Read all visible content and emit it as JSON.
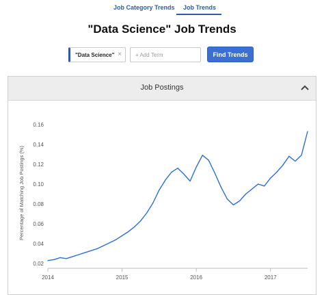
{
  "nav": {
    "tabs": [
      {
        "label": "Job Category Trends",
        "active": false
      },
      {
        "label": "Job Trends",
        "active": true
      }
    ]
  },
  "page_title": "\"Data Science\" Job Trends",
  "search": {
    "term": "\"Data Science\"",
    "remove_icon": "close-icon",
    "add_placeholder": "+ Add Term",
    "add_value": "",
    "button_label": "Find Trends",
    "accent_color": "#3b6fd3"
  },
  "panel": {
    "title": "Job Postings",
    "collapse_icon": "chevron-up-icon"
  },
  "chart_data": {
    "type": "line",
    "title": "",
    "xlabel": "",
    "ylabel": "Percentage of Matching Job Postings (%)",
    "ylim": [
      0.018,
      0.164
    ],
    "xlim": [
      "2014-01",
      "2017-07"
    ],
    "x_ticks": [
      "2014",
      "2015",
      "2016",
      "2017"
    ],
    "y_ticks": [
      "0.02",
      "0.04",
      "0.06",
      "0.08",
      "0.10",
      "0.12",
      "0.14",
      "0.16"
    ],
    "y_tick_values": [
      0.02,
      0.04,
      0.06,
      0.08,
      0.1,
      0.12,
      0.14,
      0.16
    ],
    "grid": false,
    "legend": "none",
    "line_color": "#2a6fd6",
    "series": [
      {
        "x": [
          "2014-01",
          "2014-02",
          "2014-03",
          "2014-04",
          "2014-05",
          "2014-06",
          "2014-07",
          "2014-08",
          "2014-09",
          "2014-10",
          "2014-11",
          "2014-12",
          "2015-01",
          "2015-02",
          "2015-03",
          "2015-04",
          "2015-05",
          "2015-06",
          "2015-07",
          "2015-08",
          "2015-09",
          "2015-10",
          "2015-11",
          "2015-12",
          "2016-01",
          "2016-02",
          "2016-03",
          "2016-04",
          "2016-05",
          "2016-06",
          "2016-07",
          "2016-08",
          "2016-09",
          "2016-10",
          "2016-11",
          "2016-12",
          "2017-01",
          "2017-02",
          "2017-03",
          "2017-04",
          "2017-05",
          "2017-06",
          "2017-07"
        ],
        "values": [
          0.023,
          0.024,
          0.026,
          0.025,
          0.027,
          0.029,
          0.031,
          0.033,
          0.035,
          0.038,
          0.041,
          0.044,
          0.048,
          0.052,
          0.057,
          0.063,
          0.071,
          0.081,
          0.094,
          0.104,
          0.112,
          0.116,
          0.11,
          0.103,
          0.117,
          0.129,
          0.124,
          0.111,
          0.097,
          0.085,
          0.079,
          0.083,
          0.09,
          0.095,
          0.1,
          0.098,
          0.106,
          0.112,
          0.119,
          0.128,
          0.123,
          0.129,
          0.153
        ]
      }
    ]
  }
}
